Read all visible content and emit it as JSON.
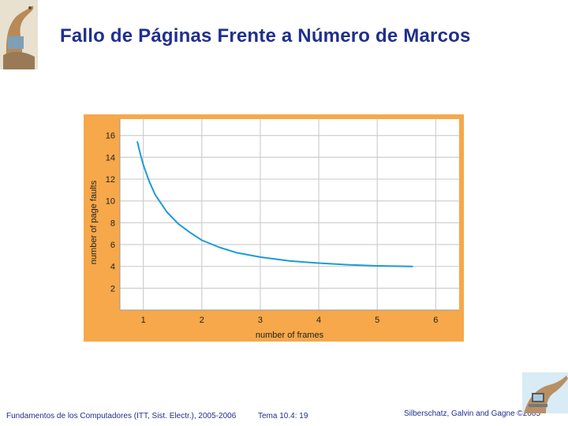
{
  "slide": {
    "title": "Fallo de Páginas Frente a Número de Marcos"
  },
  "chart_data": {
    "type": "line",
    "title": "",
    "xlabel": "number of frames",
    "ylabel": "number of page faults",
    "xlim": [
      0.6,
      6.4
    ],
    "ylim": [
      0,
      17.5
    ],
    "xticks": [
      1,
      2,
      3,
      4,
      5,
      6
    ],
    "yticks": [
      2,
      4,
      6,
      8,
      10,
      12,
      14,
      16
    ],
    "grid": true,
    "legend": "none",
    "series": [
      {
        "x": [
          0.9,
          0.95,
          1,
          1.1,
          1.2,
          1.4,
          1.6,
          1.8,
          2,
          2.3,
          2.6,
          3,
          3.5,
          4,
          4.5,
          5,
          5.6
        ],
        "values": [
          15.4,
          14.3,
          13.3,
          11.8,
          10.6,
          9.0,
          7.9,
          7.1,
          6.4,
          5.75,
          5.25,
          4.85,
          4.5,
          4.3,
          4.15,
          4.05,
          4.0
        ]
      }
    ]
  },
  "colors": {
    "title": "#1f2f8f",
    "frame": "#f6a84a",
    "plot_background": "#ffffff",
    "grid": "#cfcfcf",
    "curve": "#1d9ad6",
    "footer_text": "#1f2f8f"
  },
  "footer": {
    "course": "Fundamentos de los Computadores (ITT, Sist. Electr.), 2005-2006",
    "topic": "Tema 10.4: 19",
    "copyright": "Silberschatz, Galvin and Gagne ©2005"
  }
}
